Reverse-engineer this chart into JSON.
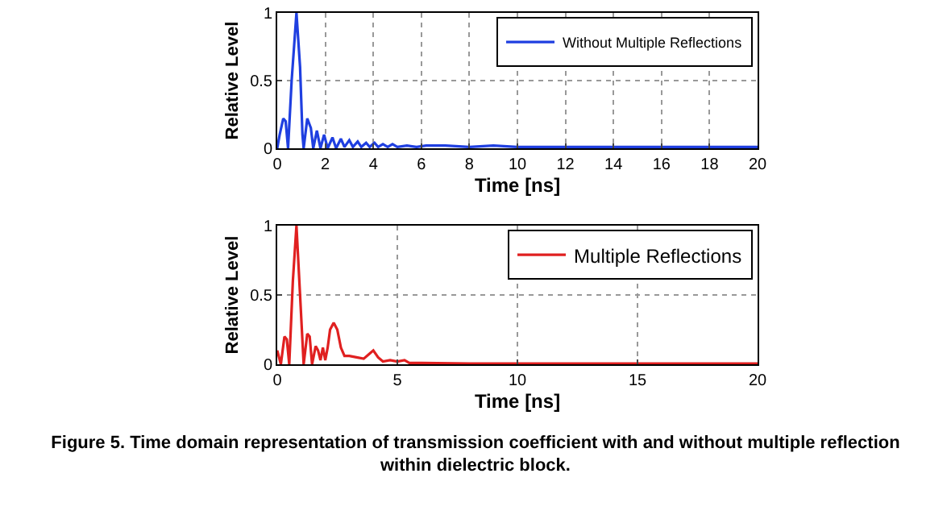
{
  "chart_data": [
    {
      "type": "line",
      "xlabel": "Time [ns]",
      "ylabel": "Relative Level",
      "legend": "top right",
      "grid": true,
      "line_style": "solid",
      "xlim": [
        0,
        20
      ],
      "ylim": [
        0,
        1
      ],
      "xticks": [
        0,
        2,
        4,
        6,
        8,
        10,
        12,
        14,
        16,
        18,
        20
      ],
      "yticks": [
        0,
        0.5,
        1
      ],
      "series": [
        {
          "name": "Without Multiple Reflections",
          "color": "#1f3fe0",
          "x": [
            0,
            0.1,
            0.25,
            0.35,
            0.45,
            0.6,
            0.8,
            0.95,
            1.05,
            1.1,
            1.25,
            1.4,
            1.5,
            1.65,
            1.8,
            1.95,
            2.1,
            2.3,
            2.45,
            2.65,
            2.8,
            3.0,
            3.15,
            3.35,
            3.5,
            3.7,
            3.85,
            4.05,
            4.2,
            4.4,
            4.6,
            4.8,
            5.0,
            5.4,
            5.8,
            6.2,
            7,
            8,
            9,
            10,
            12,
            14,
            16,
            18,
            20
          ],
          "values": [
            0,
            0.1,
            0.22,
            0.2,
            0,
            0.5,
            1,
            0.6,
            0.1,
            0,
            0.22,
            0.15,
            0,
            0.13,
            0,
            0.1,
            0,
            0.08,
            0,
            0.07,
            0.01,
            0.06,
            0.01,
            0.05,
            0.01,
            0.04,
            0.01,
            0.04,
            0.01,
            0.03,
            0.01,
            0.03,
            0.01,
            0.02,
            0.01,
            0.02,
            0.02,
            0.01,
            0.02,
            0.01,
            0.01,
            0.01,
            0.01,
            0.01,
            0.01
          ]
        }
      ]
    },
    {
      "type": "line",
      "xlabel": "Time [ns]",
      "ylabel": "Relative Level",
      "legend": "top right",
      "grid": true,
      "line_style": "solid",
      "xlim": [
        0,
        20
      ],
      "ylim": [
        0,
        1
      ],
      "xticks": [
        0,
        5,
        10,
        15,
        20
      ],
      "yticks": [
        0,
        0.5,
        1
      ],
      "annotations": [
        "Figure 5. Time domain representation of transmission coefficient with and without multiple reflection within dielectric block."
      ],
      "series": [
        {
          "name": "Multiple Reflections",
          "color": "#e02020",
          "x": [
            0,
            0.15,
            0.3,
            0.4,
            0.5,
            0.65,
            0.8,
            0.95,
            1.1,
            1.25,
            1.35,
            1.45,
            1.6,
            1.7,
            1.8,
            1.9,
            2.0,
            2.1,
            2.2,
            2.35,
            2.5,
            2.65,
            2.8,
            3.0,
            3.3,
            3.6,
            3.8,
            4.0,
            4.2,
            4.4,
            4.7,
            5.0,
            5.3,
            5.5,
            6,
            8,
            10,
            15,
            20
          ],
          "values": [
            0.1,
            0,
            0.2,
            0.18,
            0,
            0.6,
            1,
            0.5,
            0,
            0.22,
            0.2,
            0,
            0.13,
            0.1,
            0.03,
            0.12,
            0.03,
            0.12,
            0.25,
            0.3,
            0.25,
            0.12,
            0.06,
            0.06,
            0.05,
            0.04,
            0.07,
            0.1,
            0.05,
            0.02,
            0.03,
            0.02,
            0.03,
            0.01,
            0.01,
            0.005,
            0.005,
            0.005,
            0.005
          ]
        }
      ]
    }
  ]
}
